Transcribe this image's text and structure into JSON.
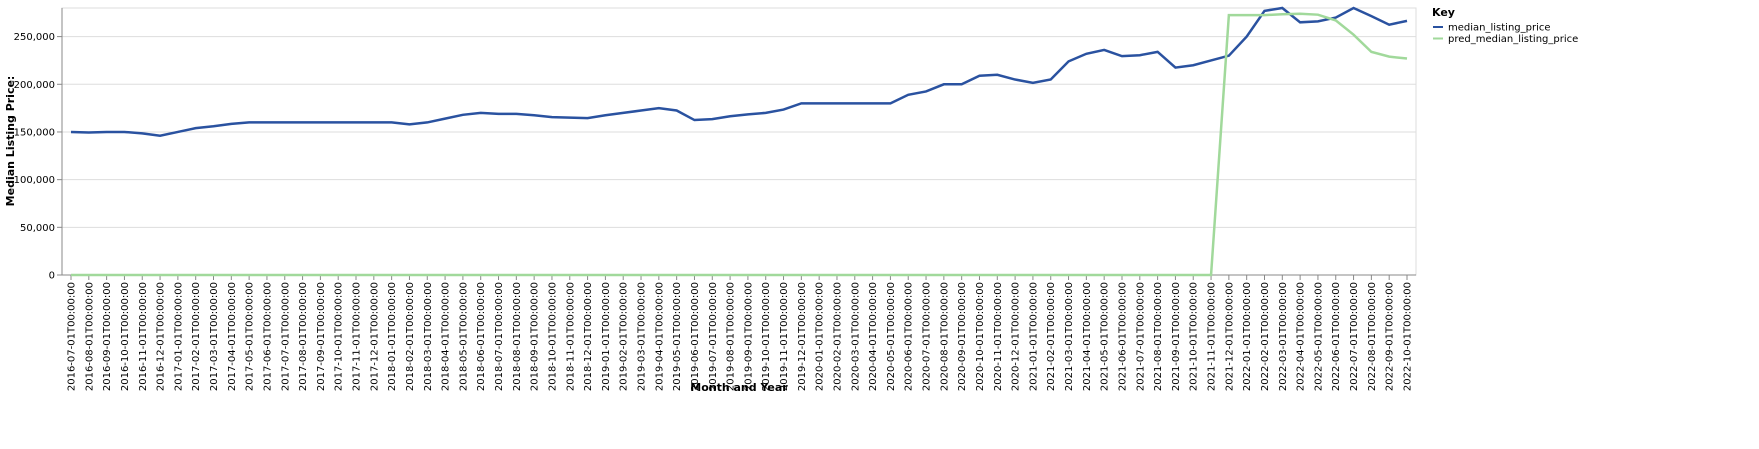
{
  "chart_data": {
    "type": "line",
    "x_label": "Month and Year",
    "y_label": "Median Listing Price:",
    "legend_title": "Key",
    "legend": "right",
    "grid": true,
    "categories": [
      "2016-07-01T00:00:00",
      "2016-08-01T00:00:00",
      "2016-09-01T00:00:00",
      "2016-10-01T00:00:00",
      "2016-11-01T00:00:00",
      "2016-12-01T00:00:00",
      "2017-01-01T00:00:00",
      "2017-02-01T00:00:00",
      "2017-03-01T00:00:00",
      "2017-04-01T00:00:00",
      "2017-05-01T00:00:00",
      "2017-06-01T00:00:00",
      "2017-07-01T00:00:00",
      "2017-08-01T00:00:00",
      "2017-09-01T00:00:00",
      "2017-10-01T00:00:00",
      "2017-11-01T00:00:00",
      "2017-12-01T00:00:00",
      "2018-01-01T00:00:00",
      "2018-02-01T00:00:00",
      "2018-03-01T00:00:00",
      "2018-04-01T00:00:00",
      "2018-05-01T00:00:00",
      "2018-06-01T00:00:00",
      "2018-07-01T00:00:00",
      "2018-08-01T00:00:00",
      "2018-09-01T00:00:00",
      "2018-10-01T00:00:00",
      "2018-11-01T00:00:00",
      "2018-12-01T00:00:00",
      "2019-01-01T00:00:00",
      "2019-02-01T00:00:00",
      "2019-03-01T00:00:00",
      "2019-04-01T00:00:00",
      "2019-05-01T00:00:00",
      "2019-06-01T00:00:00",
      "2019-07-01T00:00:00",
      "2019-08-01T00:00:00",
      "2019-09-01T00:00:00",
      "2019-10-01T00:00:00",
      "2019-11-01T00:00:00",
      "2019-12-01T00:00:00",
      "2020-01-01T00:00:00",
      "2020-02-01T00:00:00",
      "2020-03-01T00:00:00",
      "2020-04-01T00:00:00",
      "2020-05-01T00:00:00",
      "2020-06-01T00:00:00",
      "2020-07-01T00:00:00",
      "2020-08-01T00:00:00",
      "2020-09-01T00:00:00",
      "2020-10-01T00:00:00",
      "2020-11-01T00:00:00",
      "2020-12-01T00:00:00",
      "2021-01-01T00:00:00",
      "2021-02-01T00:00:00",
      "2021-03-01T00:00:00",
      "2021-04-01T00:00:00",
      "2021-05-01T00:00:00",
      "2021-06-01T00:00:00",
      "2021-07-01T00:00:00",
      "2021-08-01T00:00:00",
      "2021-09-01T00:00:00",
      "2021-10-01T00:00:00",
      "2021-11-01T00:00:00",
      "2021-12-01T00:00:00",
      "2022-01-01T00:00:00",
      "2022-02-01T00:00:00",
      "2022-03-01T00:00:00",
      "2022-04-01T00:00:00",
      "2022-05-01T00:00:00",
      "2022-06-01T00:00:00",
      "2022-07-01T00:00:00",
      "2022-08-01T00:00:00",
      "2022-09-01T00:00:00",
      "2022-10-01T00:00:00"
    ],
    "series": [
      {
        "name": "median_listing_price",
        "color": "#2a52a0",
        "values": [
          150000,
          149500,
          150000,
          150000,
          148500,
          146000,
          150000,
          154000,
          156000,
          158500,
          160000,
          160000,
          160000,
          160000,
          160000,
          160000,
          160000,
          160000,
          160000,
          158000,
          160000,
          164000,
          168000,
          170000,
          169000,
          169000,
          167500,
          165500,
          165000,
          164500,
          167500,
          170000,
          172500,
          175000,
          172500,
          162500,
          163500,
          166500,
          168500,
          170000,
          173500,
          180000,
          180000,
          180000,
          180000,
          180000,
          180000,
          189000,
          192500,
          200000,
          200000,
          209000,
          210000,
          205000,
          201500,
          205000,
          224000,
          232000,
          236000,
          229500,
          230500,
          234000,
          217500,
          220000,
          225000,
          230000,
          250000,
          277000,
          280000,
          265000,
          266000,
          270000,
          280000,
          271500,
          262500,
          266500
        ]
      },
      {
        "name": "pred_median_listing_price",
        "color": "#a1d99b",
        "values": [
          0,
          0,
          0,
          0,
          0,
          0,
          0,
          0,
          0,
          0,
          0,
          0,
          0,
          0,
          0,
          0,
          0,
          0,
          0,
          0,
          0,
          0,
          0,
          0,
          0,
          0,
          0,
          0,
          0,
          0,
          0,
          0,
          0,
          0,
          0,
          0,
          0,
          0,
          0,
          0,
          0,
          0,
          0,
          0,
          0,
          0,
          0,
          0,
          0,
          0,
          0,
          0,
          0,
          0,
          0,
          0,
          0,
          0,
          0,
          0,
          0,
          0,
          0,
          0,
          0,
          272500,
          272500,
          272500,
          273500,
          274000,
          273000,
          267000,
          252000,
          234000,
          229000,
          227000
        ]
      }
    ],
    "ylim": [
      0,
      280000
    ],
    "yticks": [
      0,
      {
        "value": 50000,
        "label": "50,000"
      },
      {
        "value": 100000,
        "label": "100,000"
      },
      {
        "value": 150000,
        "label": "150,000"
      },
      {
        "value": 200000,
        "label": "200,000"
      },
      {
        "value": 250000,
        "label": "250,000"
      }
    ]
  }
}
